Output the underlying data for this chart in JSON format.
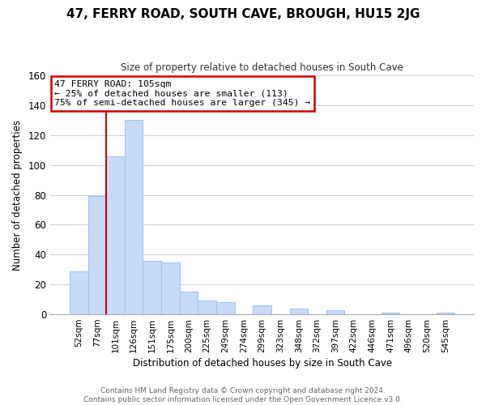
{
  "title": "47, FERRY ROAD, SOUTH CAVE, BROUGH, HU15 2JG",
  "subtitle": "Size of property relative to detached houses in South Cave",
  "xlabel": "Distribution of detached houses by size in South Cave",
  "ylabel": "Number of detached properties",
  "bar_labels": [
    "52sqm",
    "77sqm",
    "101sqm",
    "126sqm",
    "151sqm",
    "175sqm",
    "200sqm",
    "225sqm",
    "249sqm",
    "274sqm",
    "299sqm",
    "323sqm",
    "348sqm",
    "372sqm",
    "397sqm",
    "422sqm",
    "446sqm",
    "471sqm",
    "496sqm",
    "520sqm",
    "545sqm"
  ],
  "bar_heights": [
    29,
    79,
    106,
    130,
    36,
    35,
    15,
    9,
    8,
    0,
    6,
    0,
    4,
    0,
    3,
    0,
    0,
    1,
    0,
    0,
    1
  ],
  "bar_color": "#c9daf8",
  "bar_edge_color": "#9fc5f8",
  "ylim": [
    0,
    160
  ],
  "yticks": [
    0,
    20,
    40,
    60,
    80,
    100,
    120,
    140,
    160
  ],
  "property_line_index": 2,
  "annotation_line1": "47 FERRY ROAD: 105sqm",
  "annotation_line2": "← 25% of detached houses are smaller (113)",
  "annotation_line3": "75% of semi-detached houses are larger (345) →",
  "annotation_box_color": "#ffffff",
  "annotation_box_edge": "#cc0000",
  "property_line_color": "#cc0000",
  "footer_line1": "Contains HM Land Registry data © Crown copyright and database right 2024.",
  "footer_line2": "Contains public sector information licensed under the Open Government Licence v3.0.",
  "background_color": "#ffffff",
  "grid_color": "#d0d0d0"
}
